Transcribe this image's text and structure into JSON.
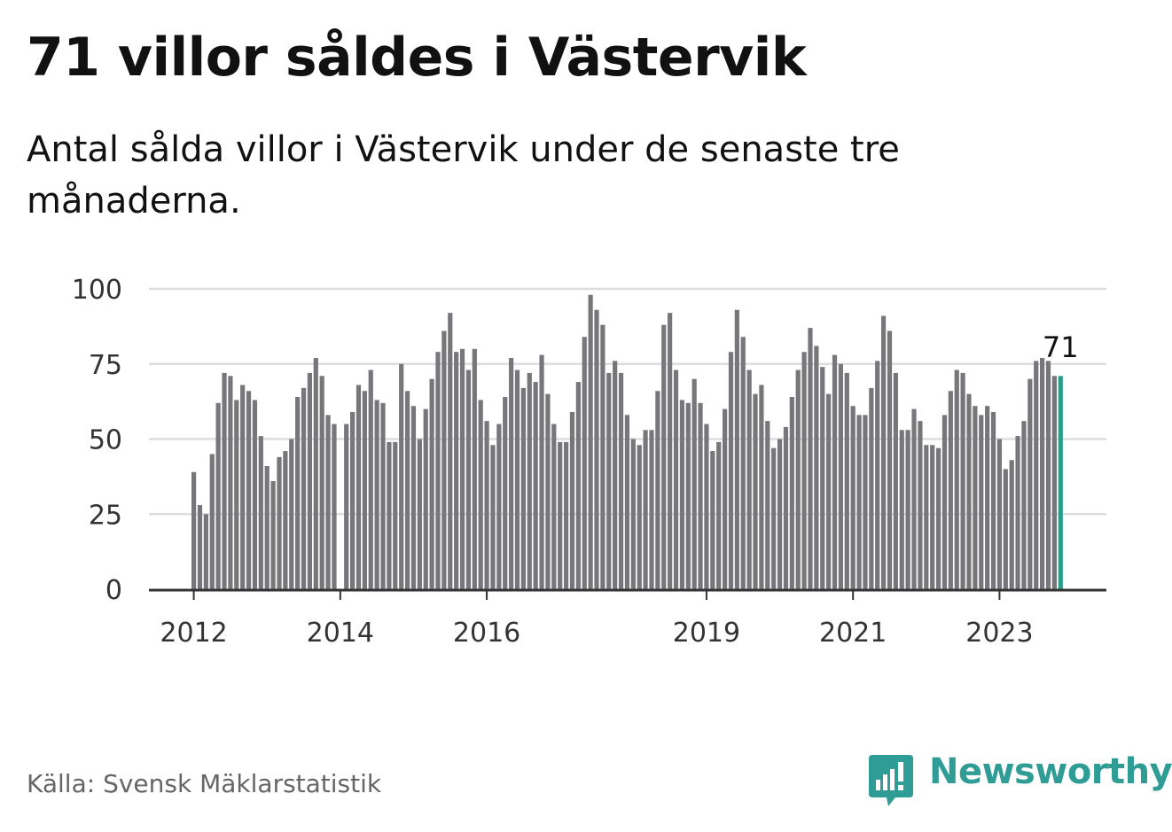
{
  "title": "71 villor såldes i Västervik",
  "subtitle": "Antal sålda villor i Västervik under de senaste tre månaderna.",
  "source": "Källa: Svensk Mäklarstatistik",
  "brand": {
    "name": "Newsworthy",
    "icon": "newsworthy-logo-icon"
  },
  "colors": {
    "bar": "#77767b",
    "highlight": "#2a9d8f",
    "grid": "#dddddd",
    "axis": "#333333",
    "brand": "#2f9c95"
  },
  "chart_data": {
    "type": "bar",
    "title": "71 villor såldes i Västervik",
    "xlabel": "",
    "ylabel": "",
    "ylim": [
      0,
      100
    ],
    "yticks": [
      0,
      25,
      50,
      75,
      100
    ],
    "grid": true,
    "start": "2012-01",
    "xticks": [
      {
        "label": "2012",
        "year": 2012
      },
      {
        "label": "2014",
        "year": 2014
      },
      {
        "label": "2016",
        "year": 2016
      },
      {
        "label": "2019",
        "year": 2019
      },
      {
        "label": "2021",
        "year": 2021
      },
      {
        "label": "2023",
        "year": 2023
      }
    ],
    "values": [
      39,
      28,
      25,
      45,
      62,
      72,
      71,
      63,
      68,
      66,
      63,
      51,
      41,
      36,
      44,
      46,
      50,
      64,
      67,
      72,
      77,
      71,
      58,
      55,
      null,
      55,
      59,
      68,
      66,
      73,
      63,
      62,
      49,
      49,
      75,
      66,
      61,
      50,
      60,
      70,
      79,
      86,
      92,
      79,
      80,
      73,
      80,
      63,
      56,
      48,
      55,
      64,
      77,
      73,
      67,
      72,
      69,
      78,
      65,
      55,
      49,
      49,
      59,
      69,
      84,
      98,
      93,
      88,
      72,
      76,
      72,
      58,
      50,
      48,
      53,
      53,
      66,
      88,
      92,
      73,
      63,
      62,
      70,
      62,
      55,
      46,
      49,
      60,
      79,
      93,
      84,
      73,
      65,
      68,
      56,
      47,
      50,
      54,
      64,
      73,
      79,
      87,
      81,
      74,
      65,
      78,
      75,
      72,
      61,
      58,
      58,
      67,
      76,
      91,
      86,
      72,
      53,
      53,
      60,
      56,
      48,
      48,
      47,
      58,
      66,
      73,
      72,
      65,
      61,
      58,
      61,
      59,
      50,
      40,
      43,
      51,
      56,
      70,
      76,
      77,
      76,
      71,
      71
    ],
    "highlight_index": 142,
    "annotation": {
      "label": "71",
      "value": 71
    }
  }
}
